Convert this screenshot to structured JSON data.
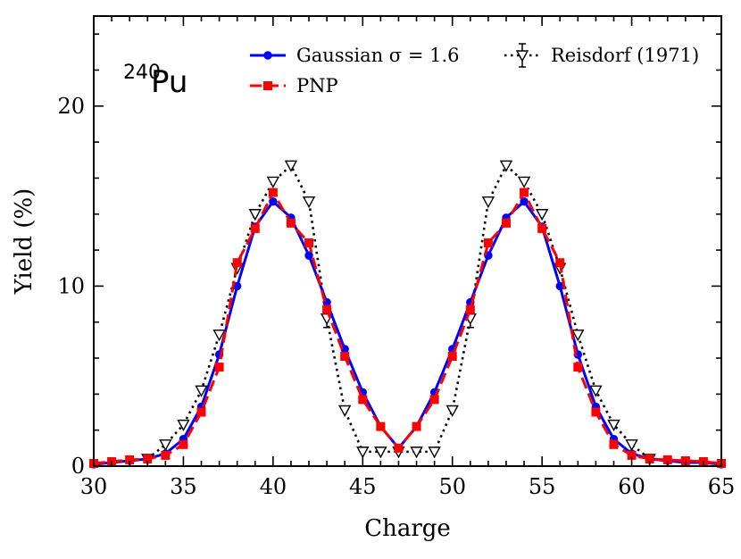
{
  "chart_data": {
    "type": "line",
    "title": "",
    "xlabel": "Charge",
    "ylabel": "Yield (%)",
    "xlim": [
      30,
      65
    ],
    "ylim": [
      0,
      25
    ],
    "xticks": [
      30,
      35,
      40,
      45,
      50,
      55,
      60,
      65
    ],
    "xtick_labels": [
      "30",
      "35",
      "40",
      "45",
      "50",
      "55",
      "60",
      "65"
    ],
    "yticks": [
      0,
      10,
      20
    ],
    "ytick_labels": [
      "0",
      "10",
      "20"
    ],
    "annotation": {
      "sup": "240",
      "main": "Pu"
    },
    "legend": {
      "placement": "top",
      "entries": [
        "Gaussian σ = 1.6",
        "PNP",
        "Reisdorf (1971)"
      ]
    },
    "series": [
      {
        "name": "Gaussian σ = 1.6",
        "color": "#0000ff",
        "marker": "circle",
        "line": "solid",
        "x": [
          30,
          31,
          32,
          33,
          34,
          35,
          36,
          37,
          38,
          39,
          40,
          41,
          42,
          43,
          44,
          45,
          46,
          47,
          48,
          49,
          50,
          51,
          52,
          53,
          54,
          55,
          56,
          57,
          58,
          59,
          60,
          61,
          62,
          63,
          64,
          65
        ],
        "y": [
          0.1,
          0.2,
          0.3,
          0.4,
          0.7,
          1.5,
          3.3,
          6.2,
          10.0,
          13.3,
          14.7,
          13.8,
          11.7,
          9.1,
          6.5,
          4.1,
          2.2,
          1.0,
          2.2,
          4.1,
          6.5,
          9.1,
          11.7,
          13.8,
          14.7,
          13.3,
          10.0,
          6.2,
          3.3,
          1.5,
          0.7,
          0.4,
          0.3,
          0.2,
          0.2,
          0.1
        ]
      },
      {
        "name": "PNP",
        "color": "#ff0000",
        "marker": "square",
        "line": "dashed",
        "x": [
          30,
          31,
          32,
          33,
          34,
          35,
          36,
          37,
          38,
          39,
          40,
          41,
          42,
          43,
          44,
          45,
          46,
          47,
          48,
          49,
          50,
          51,
          52,
          53,
          54,
          55,
          56,
          57,
          58,
          59,
          60,
          61,
          62,
          63,
          64,
          65
        ],
        "y": [
          0.15,
          0.25,
          0.35,
          0.4,
          0.6,
          1.2,
          3.0,
          5.5,
          11.3,
          13.2,
          15.2,
          13.5,
          12.4,
          8.7,
          6.1,
          3.7,
          2.2,
          1.0,
          2.2,
          3.7,
          6.1,
          8.7,
          12.4,
          13.5,
          15.2,
          13.2,
          11.3,
          5.5,
          3.0,
          1.2,
          0.6,
          0.4,
          0.35,
          0.3,
          0.25,
          0.15
        ]
      },
      {
        "name": "Reisdorf (1971)",
        "color": "#000000",
        "marker": "triangle-down",
        "line": "dotted",
        "x": [
          33,
          34,
          35,
          36,
          37,
          38,
          39,
          40,
          41,
          42,
          43,
          44,
          45,
          46,
          47,
          48,
          49,
          50,
          51,
          52,
          53,
          54,
          55,
          56,
          57,
          58,
          59,
          60,
          61
        ],
        "y": [
          0.4,
          1.2,
          2.3,
          4.2,
          7.3,
          11.0,
          14.0,
          15.8,
          16.7,
          14.7,
          8.2,
          3.1,
          0.8,
          0.8,
          0.8,
          0.8,
          0.8,
          3.1,
          8.2,
          14.7,
          16.7,
          15.8,
          14.0,
          11.0,
          7.3,
          4.2,
          2.3,
          1.2,
          0.4
        ],
        "yerr": [
          0,
          0,
          0,
          0,
          0,
          0,
          0,
          0,
          0,
          0,
          0.5,
          0,
          0,
          0,
          0,
          0,
          0,
          0,
          0.5,
          0,
          0,
          0,
          0,
          0,
          0,
          0,
          0,
          0,
          0
        ]
      }
    ]
  }
}
